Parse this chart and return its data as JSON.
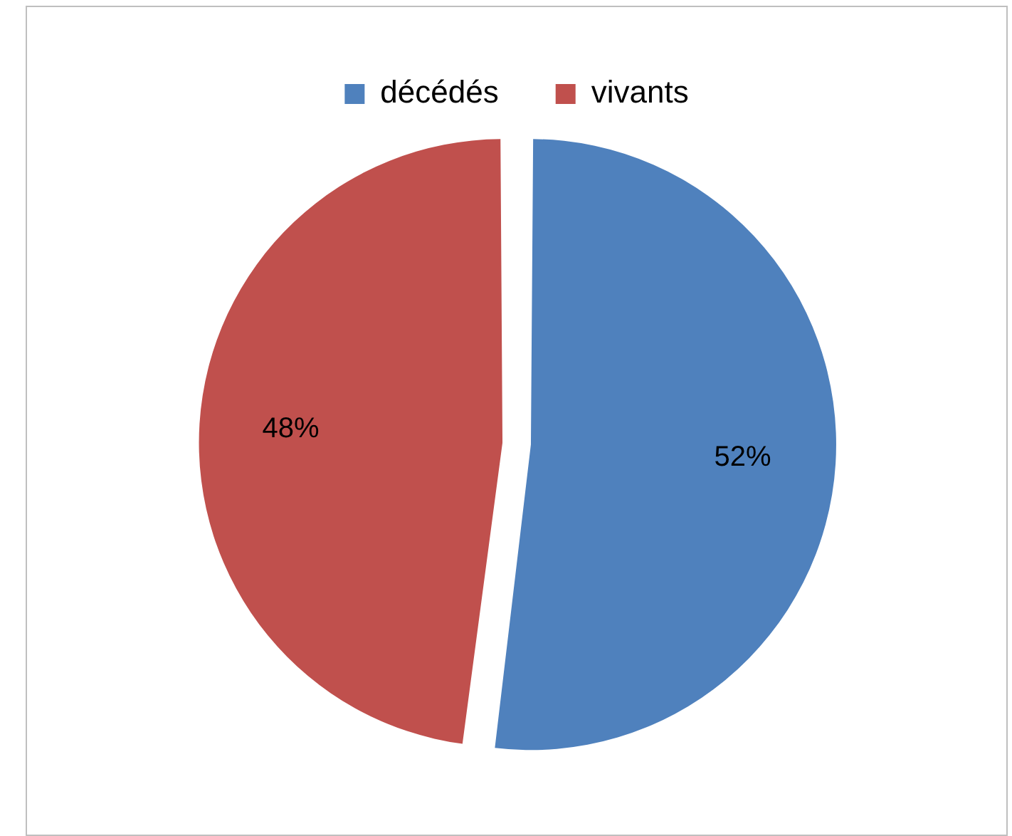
{
  "chart_data": {
    "type": "pie",
    "categories": [
      "décédés",
      "vivants"
    ],
    "values": [
      52,
      48
    ],
    "colors": [
      "#4f81bd",
      "#c0504d"
    ],
    "value_labels": [
      "52%",
      "48%"
    ],
    "legend": "top"
  }
}
